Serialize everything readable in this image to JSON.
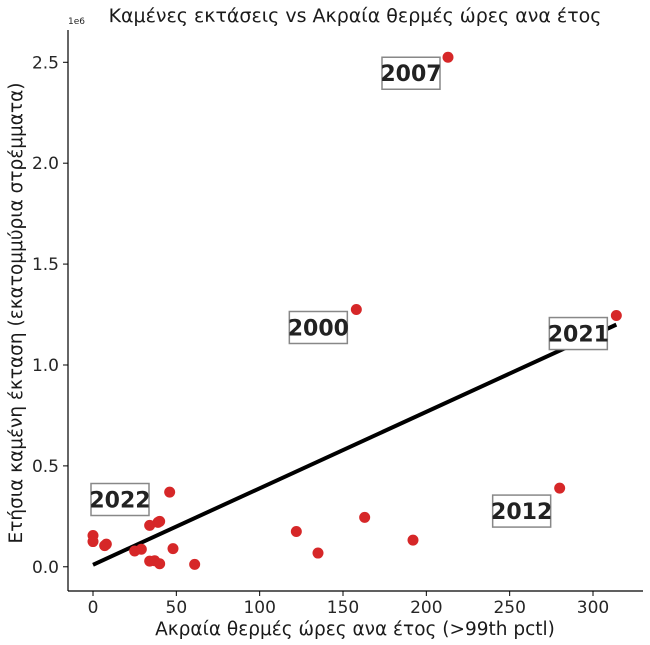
{
  "chart_data": {
    "type": "scatter",
    "title": "Καμένες εκτάσεις vs Ακραία θερμές ώρες ανα έτος",
    "xlabel": "Ακραία θερμές ώρες ανα έτος (>99th pctl)",
    "ylabel": "Ετήσια καμένη έκταση (εκατομμύρια στρέμματα)",
    "y_offset_label": "1e6",
    "xlim": [
      -15,
      330
    ],
    "ylim": [
      -120000,
      2660000
    ],
    "x_ticks": [
      0,
      50,
      100,
      150,
      200,
      250,
      300
    ],
    "x_tick_labels": [
      "0",
      "50",
      "100",
      "150",
      "200",
      "250",
      "300"
    ],
    "y_ticks": [
      0,
      500000,
      1000000,
      1500000,
      2000000,
      2500000
    ],
    "y_tick_labels": [
      "0.0",
      "0.5",
      "1.0",
      "1.5",
      "2.0",
      "2.5"
    ],
    "point_color": "#d62728",
    "line_color": "#000000",
    "points": [
      {
        "x": 0,
        "y": 155000
      },
      {
        "x": 0,
        "y": 125000
      },
      {
        "x": 7,
        "y": 105000
      },
      {
        "x": 8,
        "y": 112000
      },
      {
        "x": 25,
        "y": 78000
      },
      {
        "x": 29,
        "y": 87000
      },
      {
        "x": 34,
        "y": 205000
      },
      {
        "x": 34,
        "y": 28000
      },
      {
        "x": 37,
        "y": 30000
      },
      {
        "x": 39,
        "y": 220000
      },
      {
        "x": 40,
        "y": 225000
      },
      {
        "x": 40,
        "y": 15000
      },
      {
        "x": 46,
        "y": 370000
      },
      {
        "x": 48,
        "y": 90000
      },
      {
        "x": 61,
        "y": 12000
      },
      {
        "x": 122,
        "y": 175000
      },
      {
        "x": 135,
        "y": 68000
      },
      {
        "x": 158,
        "y": 1275000
      },
      {
        "x": 163,
        "y": 245000
      },
      {
        "x": 192,
        "y": 132000
      },
      {
        "x": 213,
        "y": 2525000
      },
      {
        "x": 280,
        "y": 390000
      },
      {
        "x": 314,
        "y": 1245000
      }
    ],
    "trend_line": {
      "x": [
        0,
        314
      ],
      "y": [
        10000,
        1200000
      ]
    },
    "annotations": [
      {
        "text": "2007",
        "x": 213,
        "y": 2525000
      },
      {
        "text": "2000",
        "x": 158,
        "y": 1275000
      },
      {
        "text": "2021",
        "x": 314,
        "y": 1245000
      },
      {
        "text": "2012",
        "x": 280,
        "y": 390000
      },
      {
        "text": "2022",
        "x": 0,
        "y": 155000
      }
    ],
    "grid": false
  }
}
